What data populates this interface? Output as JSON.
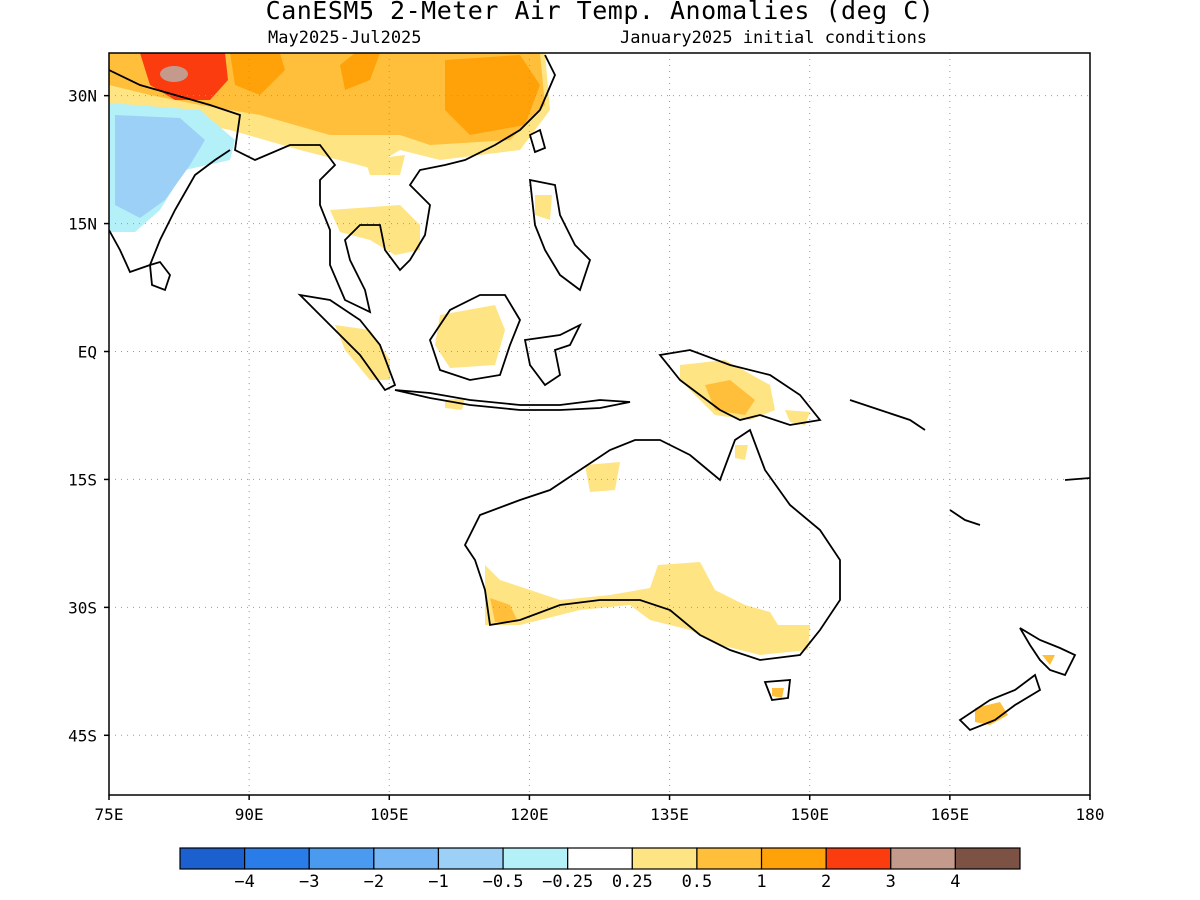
{
  "title": "CanESM5 2-Meter Air Temp. Anomalies (deg C)",
  "subtitle_left": "May2025-Jul2025",
  "subtitle_right": "January2025 initial conditions",
  "map": {
    "lon_range": [
      75,
      180
    ],
    "lat_range": [
      -52,
      35
    ],
    "lon_ticks": [
      {
        "value": 75,
        "label": "75E"
      },
      {
        "value": 90,
        "label": "90E"
      },
      {
        "value": 105,
        "label": "105E"
      },
      {
        "value": 120,
        "label": "120E"
      },
      {
        "value": 135,
        "label": "135E"
      },
      {
        "value": 150,
        "label": "150E"
      },
      {
        "value": 165,
        "label": "165E"
      },
      {
        "value": 180,
        "label": "180"
      }
    ],
    "lat_ticks": [
      {
        "value": 30,
        "label": "30N"
      },
      {
        "value": 15,
        "label": "15N"
      },
      {
        "value": 0,
        "label": "EQ"
      },
      {
        "value": -15,
        "label": "15S"
      },
      {
        "value": -30,
        "label": "30S"
      },
      {
        "value": -45,
        "label": "45S"
      }
    ],
    "grid": true
  },
  "colorbar": {
    "colors": [
      "#1c5fcf",
      "#2a7de8",
      "#4a9bf0",
      "#78b7f5",
      "#9dd0f7",
      "#b4f0f8",
      "#ffffff",
      "#ffe484",
      "#ffbf3a",
      "#ffa20a",
      "#fb3c0e",
      "#c49a8c",
      "#7c5245"
    ],
    "labels": [
      "−4",
      "−3",
      "−2",
      "−1",
      "−0.5",
      "−0.25",
      "0.25",
      "0.5",
      "1",
      "2",
      "3",
      "4"
    ]
  }
}
